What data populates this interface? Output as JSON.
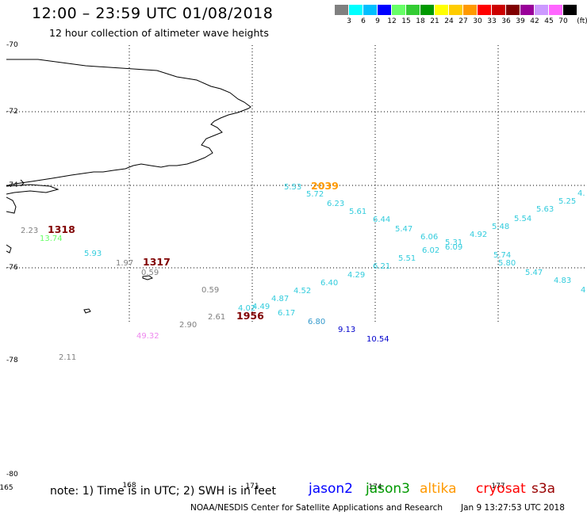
{
  "title": "12:00 – 23:59 UTC 01/08/2018",
  "subtitle": "12 hour collection of altimeter wave heights",
  "color_scale": {
    "unit": "(ft)",
    "colors": [
      "#808080",
      "#00ffff",
      "#00bfff",
      "#0000ff",
      "#66ff66",
      "#33cc33",
      "#009900",
      "#ffff00",
      "#ffcc00",
      "#ff9900",
      "#ff0000",
      "#cc0000",
      "#800000",
      "#990099",
      "#cc99ff",
      "#ff66ff",
      "#000000"
    ],
    "labels": [
      "3",
      "6",
      "9",
      "12",
      "15",
      "18",
      "21",
      "24",
      "27",
      "30",
      "33",
      "36",
      "39",
      "42",
      "45",
      "70"
    ]
  },
  "map": {
    "lat_labels": [
      "-70",
      "-72",
      "-74",
      "-76",
      "-78",
      "-80"
    ],
    "lon_labels": [
      "165",
      "168",
      "171",
      "174",
      "177"
    ],
    "wave_heights": [
      {
        "text": "5.53",
        "color": "#33ccdd",
        "big": false
      },
      {
        "text": "2039",
        "color": "#ff9900",
        "big": true
      },
      {
        "text": "5.72",
        "color": "#33ccdd",
        "big": false
      },
      {
        "text": "6.23",
        "color": "#33ccdd",
        "big": false
      },
      {
        "text": "5.61",
        "color": "#33ccdd",
        "big": false
      },
      {
        "text": "6.44",
        "color": "#33ccdd",
        "big": false
      },
      {
        "text": "5.47",
        "color": "#33ccdd",
        "big": false
      },
      {
        "text": "6.06",
        "color": "#33ccdd",
        "big": false
      },
      {
        "text": "5.31",
        "color": "#33ccdd",
        "big": false
      },
      {
        "text": "6.09",
        "color": "#33ccdd",
        "big": false
      },
      {
        "text": "6.02",
        "color": "#33ccdd",
        "big": false
      },
      {
        "text": "4.92",
        "color": "#33ccdd",
        "big": false
      },
      {
        "text": "5.48",
        "color": "#33ccdd",
        "big": false
      },
      {
        "text": "5.54",
        "color": "#33ccdd",
        "big": false
      },
      {
        "text": "5.63",
        "color": "#33ccdd",
        "big": false
      },
      {
        "text": "5.25",
        "color": "#33ccdd",
        "big": false
      },
      {
        "text": "4.",
        "color": "#33ccdd",
        "big": false
      },
      {
        "text": "5.74",
        "color": "#33ccdd",
        "big": false
      },
      {
        "text": "5.80",
        "color": "#33ccdd",
        "big": false
      },
      {
        "text": "5.47",
        "color": "#33ccdd",
        "big": false
      },
      {
        "text": "4.83",
        "color": "#33ccdd",
        "big": false
      },
      {
        "text": "4",
        "color": "#33ccdd",
        "big": false
      },
      {
        "text": "5.51",
        "color": "#33ccdd",
        "big": false
      },
      {
        "text": "6.21",
        "color": "#33ccdd",
        "big": false
      },
      {
        "text": "4.29",
        "color": "#33ccdd",
        "big": false
      },
      {
        "text": "6.40",
        "color": "#33ccdd",
        "big": false
      },
      {
        "text": "4.52",
        "color": "#33ccdd",
        "big": false
      },
      {
        "text": "4.87",
        "color": "#33ccdd",
        "big": false
      },
      {
        "text": "4.49",
        "color": "#33ccdd",
        "big": false
      },
      {
        "text": "4.02",
        "color": "#33ccdd",
        "big": false
      },
      {
        "text": "6.17",
        "color": "#33ccdd",
        "big": false
      },
      {
        "text": "6.80",
        "color": "#3399cc",
        "big": false
      },
      {
        "text": "9.13",
        "color": "#0000cc",
        "big": false
      },
      {
        "text": "10.54",
        "color": "#0000cc",
        "big": false
      },
      {
        "text": "2.23",
        "color": "#808080",
        "big": false
      },
      {
        "text": "1318",
        "color": "#800000",
        "big": true
      },
      {
        "text": "13.74",
        "color": "#66ff66",
        "big": false
      },
      {
        "text": "5.93",
        "color": "#33ccdd",
        "big": false
      },
      {
        "text": "1.97",
        "color": "#808080",
        "big": false
      },
      {
        "text": "1317",
        "color": "#800000",
        "big": true
      },
      {
        "text": "0.59",
        "color": "#808080",
        "big": false
      },
      {
        "text": "0.59",
        "color": "#808080",
        "big": false
      },
      {
        "text": "2.61",
        "color": "#808080",
        "big": false
      },
      {
        "text": "1956",
        "color": "#800000",
        "big": true
      },
      {
        "text": "2.90",
        "color": "#808080",
        "big": false
      },
      {
        "text": "49.32",
        "color": "#ee88ee",
        "big": false
      },
      {
        "text": "2.11",
        "color": "#808080",
        "big": false
      }
    ]
  },
  "note": "note:  1) Time is in UTC;  2) SWH is in feet",
  "satellites": [
    {
      "name": "jason2",
      "color": "#0000ff"
    },
    {
      "name": "jason3",
      "color": "#009900"
    },
    {
      "name": "altika",
      "color": "#ff9900"
    },
    {
      "name": "cryosat",
      "color": "#ff0000"
    },
    {
      "name": "s3a",
      "color": "#990000"
    }
  ],
  "credit": "NOAA/NESDIS Center for Satellite Applications and Research",
  "timestamp": "Jan  9 13:27:53 UTC 2018"
}
